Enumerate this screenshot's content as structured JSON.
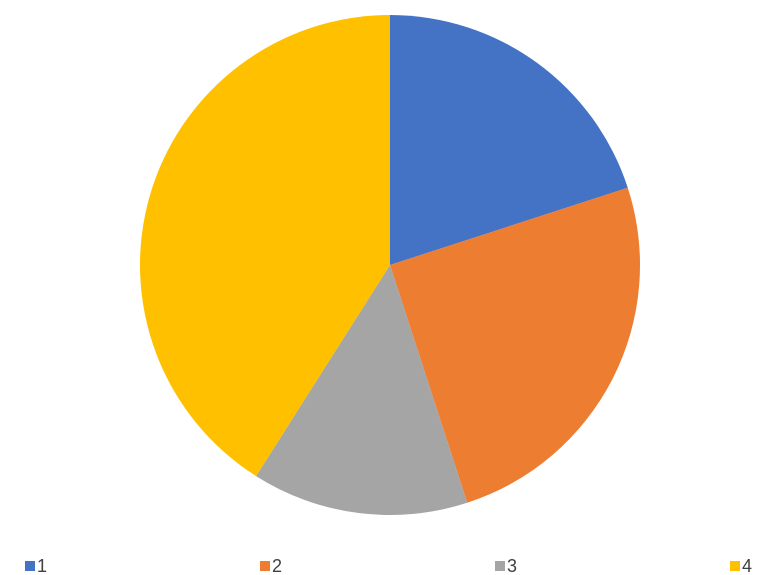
{
  "chart_data": {
    "type": "pie",
    "categories": [
      "1",
      "2",
      "3",
      "4"
    ],
    "values": [
      20,
      25,
      14,
      41
    ],
    "colors": [
      "#4472c4",
      "#ed7d31",
      "#a5a5a5",
      "#ffc000"
    ],
    "legend": "bottom"
  }
}
